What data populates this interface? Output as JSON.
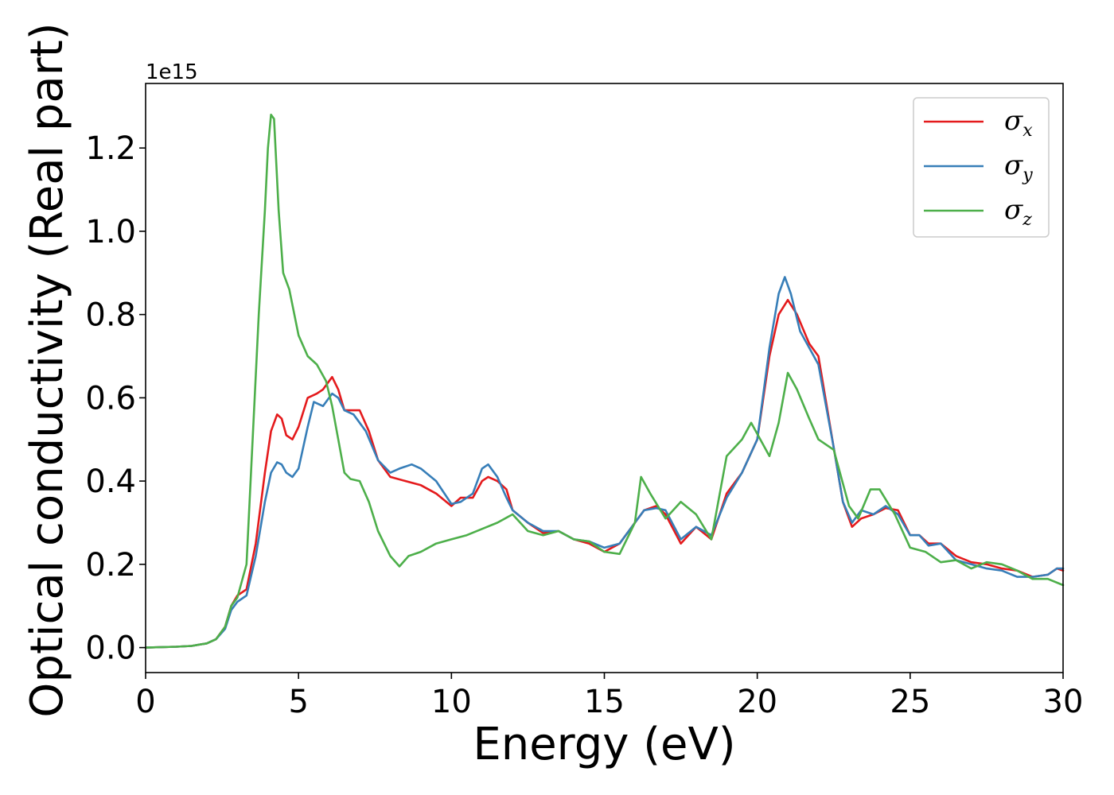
{
  "chart_data": {
    "type": "line",
    "xlabel": "Energy (eV)",
    "ylabel": "Optical conductivity (Real part)",
    "y_offset_label": "1e15",
    "xlim": [
      0,
      30
    ],
    "ylim": [
      -0.06,
      1.355
    ],
    "x_ticks": [
      0,
      5,
      10,
      15,
      20,
      25,
      30
    ],
    "y_ticks": [
      0.0,
      0.2,
      0.4,
      0.6,
      0.8,
      1.0,
      1.2
    ],
    "grid": false,
    "legend_position": "upper-right",
    "series": [
      {
        "name": "σx",
        "symbol": "σ",
        "subscript": "x",
        "color": "#e41a1c",
        "x": [
          0,
          1,
          1.5,
          2,
          2.3,
          2.6,
          2.8,
          3.0,
          3.3,
          3.6,
          3.9,
          4.1,
          4.3,
          4.45,
          4.6,
          4.8,
          5.0,
          5.3,
          5.6,
          5.8,
          6.1,
          6.3,
          6.5,
          6.7,
          7.0,
          7.3,
          7.6,
          8.0,
          8.5,
          9.0,
          9.5,
          10.0,
          10.3,
          10.7,
          11.0,
          11.2,
          11.5,
          11.8,
          12.0,
          12.5,
          13.0,
          13.5,
          14.0,
          14.5,
          15.0,
          15.5,
          16.0,
          16.3,
          16.7,
          17.0,
          17.5,
          18.0,
          18.5,
          19.0,
          19.5,
          20.0,
          20.4,
          20.7,
          21.0,
          21.3,
          21.7,
          22.0,
          22.5,
          22.8,
          23.1,
          23.4,
          23.8,
          24.2,
          24.6,
          25.0,
          25.3,
          25.6,
          26.0,
          26.5,
          27.0,
          27.5,
          28.0,
          28.5,
          29.0,
          29.5,
          29.8,
          30.0
        ],
        "y": [
          0.0,
          0.002,
          0.004,
          0.01,
          0.02,
          0.05,
          0.1,
          0.125,
          0.14,
          0.25,
          0.42,
          0.52,
          0.56,
          0.55,
          0.51,
          0.5,
          0.53,
          0.6,
          0.61,
          0.62,
          0.65,
          0.62,
          0.57,
          0.57,
          0.57,
          0.52,
          0.45,
          0.41,
          0.4,
          0.39,
          0.37,
          0.34,
          0.36,
          0.36,
          0.4,
          0.41,
          0.4,
          0.38,
          0.33,
          0.3,
          0.275,
          0.28,
          0.26,
          0.25,
          0.23,
          0.25,
          0.3,
          0.33,
          0.34,
          0.32,
          0.25,
          0.29,
          0.26,
          0.37,
          0.42,
          0.5,
          0.7,
          0.8,
          0.835,
          0.8,
          0.73,
          0.7,
          0.48,
          0.35,
          0.29,
          0.31,
          0.32,
          0.335,
          0.33,
          0.27,
          0.27,
          0.25,
          0.25,
          0.22,
          0.205,
          0.2,
          0.19,
          0.185,
          0.17,
          0.175,
          0.19,
          0.185
        ]
      },
      {
        "name": "σy",
        "symbol": "σ",
        "subscript": "y",
        "color": "#377eb8",
        "x": [
          0,
          1,
          1.5,
          2,
          2.3,
          2.6,
          2.8,
          3.0,
          3.3,
          3.6,
          3.9,
          4.1,
          4.3,
          4.45,
          4.6,
          4.8,
          5.0,
          5.3,
          5.5,
          5.8,
          6.1,
          6.3,
          6.5,
          6.8,
          7.2,
          7.6,
          8.0,
          8.3,
          8.7,
          9.0,
          9.5,
          10.0,
          10.3,
          10.7,
          11.0,
          11.2,
          11.5,
          11.8,
          12.0,
          12.5,
          13.0,
          13.5,
          14.0,
          14.5,
          15.0,
          15.5,
          16.0,
          16.3,
          16.7,
          17.0,
          17.5,
          18.0,
          18.5,
          19.0,
          19.5,
          20.0,
          20.4,
          20.7,
          20.9,
          21.1,
          21.4,
          21.7,
          22.0,
          22.5,
          22.8,
          23.1,
          23.4,
          23.8,
          24.2,
          24.6,
          25.0,
          25.3,
          25.6,
          26.0,
          26.5,
          27.0,
          27.5,
          28.0,
          28.5,
          29.0,
          29.5,
          29.8,
          30.0
        ],
        "y": [
          0.0,
          0.002,
          0.004,
          0.01,
          0.02,
          0.045,
          0.09,
          0.11,
          0.125,
          0.22,
          0.35,
          0.42,
          0.445,
          0.44,
          0.42,
          0.41,
          0.43,
          0.53,
          0.59,
          0.58,
          0.61,
          0.6,
          0.57,
          0.56,
          0.52,
          0.45,
          0.42,
          0.43,
          0.44,
          0.43,
          0.4,
          0.345,
          0.35,
          0.37,
          0.43,
          0.44,
          0.41,
          0.36,
          0.33,
          0.3,
          0.28,
          0.28,
          0.26,
          0.255,
          0.24,
          0.25,
          0.3,
          0.33,
          0.335,
          0.33,
          0.26,
          0.29,
          0.27,
          0.36,
          0.42,
          0.5,
          0.72,
          0.85,
          0.89,
          0.85,
          0.76,
          0.72,
          0.68,
          0.48,
          0.35,
          0.3,
          0.33,
          0.32,
          0.34,
          0.32,
          0.27,
          0.27,
          0.245,
          0.25,
          0.21,
          0.2,
          0.19,
          0.185,
          0.17,
          0.17,
          0.175,
          0.19,
          0.19
        ]
      },
      {
        "name": "σz",
        "symbol": "σ",
        "subscript": "z",
        "color": "#4daf4a",
        "x": [
          0,
          1,
          1.5,
          2,
          2.3,
          2.6,
          2.8,
          3.0,
          3.3,
          3.5,
          3.7,
          3.9,
          4.0,
          4.1,
          4.2,
          4.35,
          4.5,
          4.7,
          5.0,
          5.3,
          5.6,
          5.9,
          6.1,
          6.3,
          6.5,
          6.7,
          7.0,
          7.3,
          7.6,
          8.0,
          8.3,
          8.6,
          9.0,
          9.5,
          10.0,
          10.5,
          11.0,
          11.5,
          12.0,
          12.5,
          13.0,
          13.5,
          14.0,
          14.5,
          15.0,
          15.5,
          16.0,
          16.2,
          16.5,
          17.0,
          17.5,
          18.0,
          18.5,
          19.0,
          19.5,
          19.8,
          20.1,
          20.4,
          20.7,
          21.0,
          21.3,
          21.7,
          22.0,
          22.5,
          23.0,
          23.3,
          23.7,
          24.0,
          24.5,
          25.0,
          25.5,
          26.0,
          26.5,
          27.0,
          27.5,
          28.0,
          28.5,
          29.0,
          29.5,
          30.0
        ],
        "y": [
          0.0,
          0.002,
          0.004,
          0.01,
          0.02,
          0.05,
          0.1,
          0.12,
          0.2,
          0.5,
          0.8,
          1.05,
          1.2,
          1.28,
          1.27,
          1.05,
          0.9,
          0.86,
          0.75,
          0.7,
          0.68,
          0.64,
          0.58,
          0.5,
          0.42,
          0.405,
          0.4,
          0.35,
          0.28,
          0.22,
          0.195,
          0.22,
          0.23,
          0.25,
          0.26,
          0.27,
          0.285,
          0.3,
          0.32,
          0.28,
          0.27,
          0.28,
          0.26,
          0.255,
          0.23,
          0.225,
          0.3,
          0.41,
          0.37,
          0.31,
          0.35,
          0.32,
          0.26,
          0.46,
          0.5,
          0.54,
          0.5,
          0.46,
          0.54,
          0.66,
          0.62,
          0.55,
          0.5,
          0.475,
          0.34,
          0.31,
          0.38,
          0.38,
          0.32,
          0.24,
          0.23,
          0.205,
          0.21,
          0.19,
          0.205,
          0.2,
          0.185,
          0.165,
          0.165,
          0.15
        ]
      }
    ]
  }
}
